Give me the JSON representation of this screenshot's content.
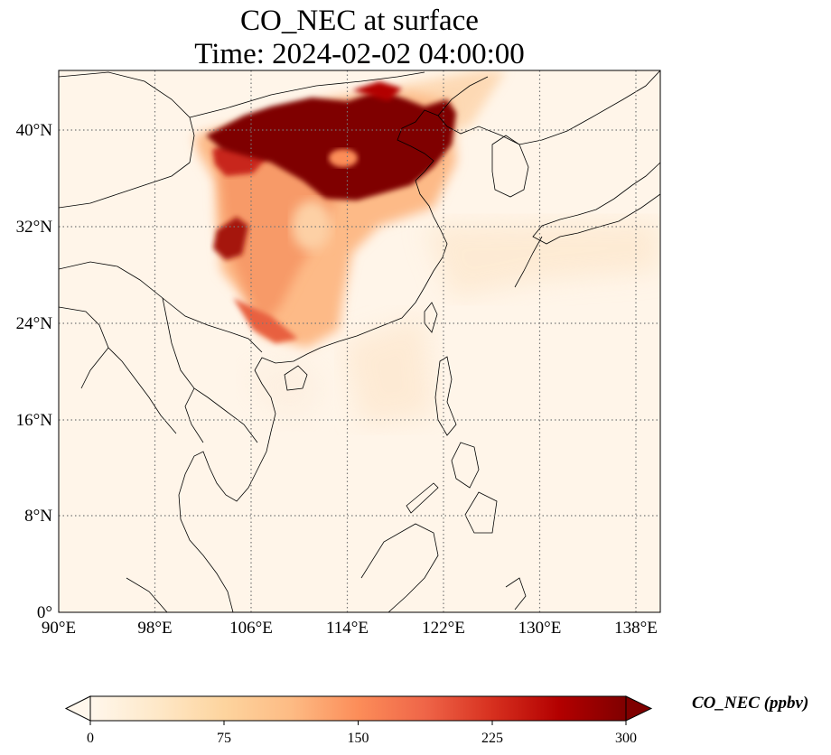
{
  "title": {
    "line1": "CO_NEC at surface",
    "line2": "Time: 2024-02-02 04:00:00"
  },
  "map": {
    "type": "heatmap",
    "projection": "PlateCarree",
    "lon_range": [
      90,
      140
    ],
    "lat_range": [
      0,
      44
    ],
    "grid": true,
    "lon_ticks": [
      {
        "value": 90,
        "label": "90°E"
      },
      {
        "value": 98,
        "label": "98°E"
      },
      {
        "value": 106,
        "label": "106°E"
      },
      {
        "value": 114,
        "label": "114°E"
      },
      {
        "value": 122,
        "label": "122°E"
      },
      {
        "value": 130,
        "label": "130°E"
      },
      {
        "value": 138,
        "label": "138°E"
      }
    ],
    "lat_ticks": [
      {
        "value": 0,
        "label": "0°"
      },
      {
        "value": 8,
        "label": "8°N"
      },
      {
        "value": 16,
        "label": "16°N"
      },
      {
        "value": 24,
        "label": "24°N"
      },
      {
        "value": 32,
        "label": "32°N"
      },
      {
        "value": 40,
        "label": "40°N"
      }
    ]
  },
  "colorbar": {
    "label": "CO_NEC (ppbv)",
    "range": [
      0,
      300
    ],
    "extend": "both",
    "colormap": "OrRd",
    "colors": [
      "#fff7ec",
      "#fee8c8",
      "#fdd49e",
      "#fdbb84",
      "#fc8d59",
      "#ef6548",
      "#d7301f",
      "#b30000",
      "#7f0000"
    ],
    "ticks": [
      {
        "value": 0,
        "label": "0"
      },
      {
        "value": 75,
        "label": "75"
      },
      {
        "value": 150,
        "label": "150"
      },
      {
        "value": 225,
        "label": "225"
      },
      {
        "value": 300,
        "label": "300"
      }
    ]
  }
}
